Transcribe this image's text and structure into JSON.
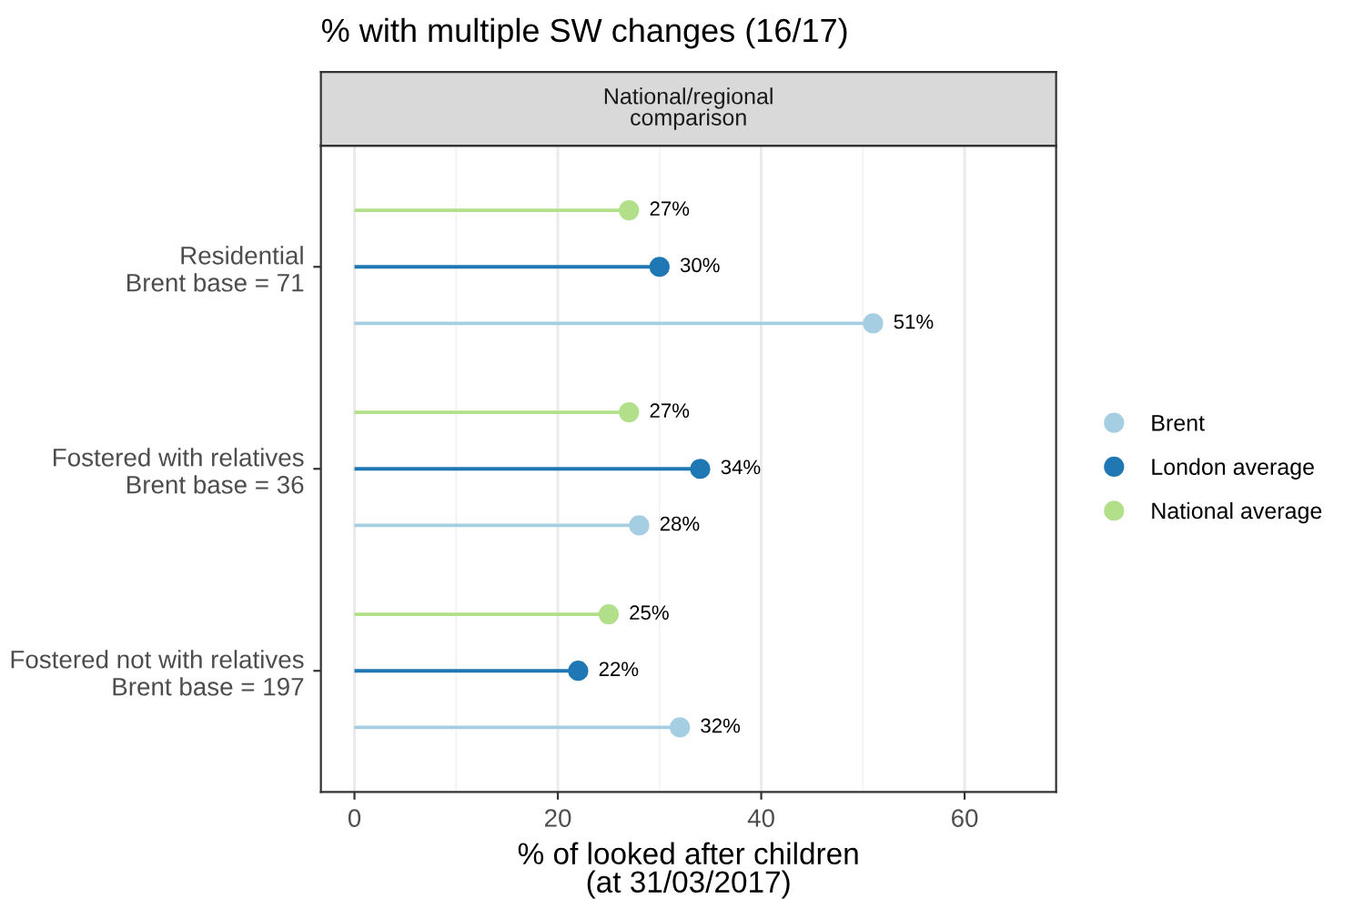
{
  "chart_data": {
    "type": "lollipop",
    "orientation": "horizontal",
    "title": "% with multiple SW changes (16/17)",
    "subtitle": "National/regional\ncomparison",
    "xlabel": "% of looked after children\n(at 31/03/2017)",
    "categories": [
      "Residential\nBrent base = 71",
      "Fostered with relatives\nBrent base = 36",
      "Fostered not with relatives\nBrent base = 197"
    ],
    "series": [
      {
        "name": "Brent",
        "color": "#a6cee3",
        "values": [
          51,
          28,
          32
        ],
        "value_labels": [
          "51%",
          "28%",
          "32%"
        ]
      },
      {
        "name": "London average",
        "color": "#1f78b4",
        "values": [
          30,
          34,
          22
        ],
        "value_labels": [
          "30%",
          "34%",
          "22%"
        ]
      },
      {
        "name": "National average",
        "color": "#b2df8a",
        "values": [
          27,
          27,
          25
        ],
        "value_labels": [
          "27%",
          "27%",
          "25%"
        ]
      }
    ],
    "xlim": [
      -3.3,
      69
    ],
    "xticks": [
      0,
      20,
      40,
      60
    ],
    "grid": "x",
    "legend": "right",
    "marker": "circle"
  }
}
